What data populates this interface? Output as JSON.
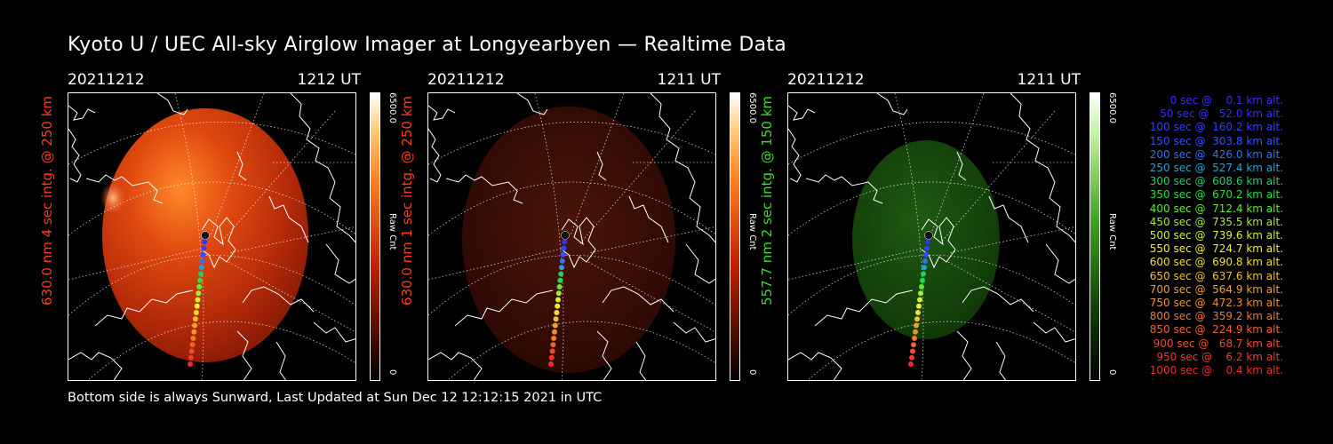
{
  "title": "Kyoto U / UEC All-sky Airglow Imager at Longyearbyen — Realtime Data",
  "footer": "Bottom side is always Sunward, Last Updated at Sun Dec 12 12:12:15 2021 in UTC",
  "colorbar": {
    "max": "6500.0",
    "min": "0",
    "unit": "Raw Cnt"
  },
  "panels": [
    {
      "date": "20211212",
      "time": "1212 UT",
      "label": "630.0 nm 4 sec intg. @ 250 km",
      "label_color": "#ff3a1a",
      "theme": "red-bright"
    },
    {
      "date": "20211212",
      "time": "1211 UT",
      "label": "630.0 nm 1 sec intg. @ 250 km",
      "label_color": "#ff3a1a",
      "theme": "red-dim"
    },
    {
      "date": "20211212",
      "time": "1211 UT",
      "label": "557.7 nm 2 sec intg. @ 150 km",
      "label_color": "#3cdc28",
      "theme": "green"
    }
  ],
  "legend": [
    {
      "text": "0 sec @    0.1 km alt.",
      "color": "#3030ff"
    },
    {
      "text": "50 sec @   52.0 km alt.",
      "color": "#3030ff"
    },
    {
      "text": "100 sec @  160.2 km alt.",
      "color": "#3040ff"
    },
    {
      "text": "150 sec @  303.8 km alt.",
      "color": "#3050ff"
    },
    {
      "text": "200 sec @  426.0 km alt.",
      "color": "#3070ff"
    },
    {
      "text": "250 sec @  527.4 km alt.",
      "color": "#2aa0d0"
    },
    {
      "text": "300 sec @  608.6 km alt.",
      "color": "#20d070"
    },
    {
      "text": "350 sec @  670.2 km alt.",
      "color": "#20e040"
    },
    {
      "text": "400 sec @  712.4 km alt.",
      "color": "#60ea30"
    },
    {
      "text": "450 sec @  735.5 km alt.",
      "color": "#a0f030"
    },
    {
      "text": "500 sec @  739.6 km alt.",
      "color": "#d0f030"
    },
    {
      "text": "550 sec @  724.7 km alt.",
      "color": "#f0f030"
    },
    {
      "text": "600 sec @  690.8 km alt.",
      "color": "#f0e030"
    },
    {
      "text": "650 sec @  637.6 km alt.",
      "color": "#f0c030"
    },
    {
      "text": "700 sec @  564.9 km alt.",
      "color": "#f0a030"
    },
    {
      "text": "750 sec @  472.3 km alt.",
      "color": "#f09030"
    },
    {
      "text": "800 sec @  359.2 km alt.",
      "color": "#f07830"
    },
    {
      "text": "850 sec @  224.9 km alt.",
      "color": "#f06030"
    },
    {
      "text": "900 sec @   68.7 km alt.",
      "color": "#f04a30"
    },
    {
      "text": "950 sec @    6.2 km alt.",
      "color": "#f03a30"
    },
    {
      "text": "1000 sec @    0.4 km alt.",
      "color": "#f02a30"
    }
  ]
}
